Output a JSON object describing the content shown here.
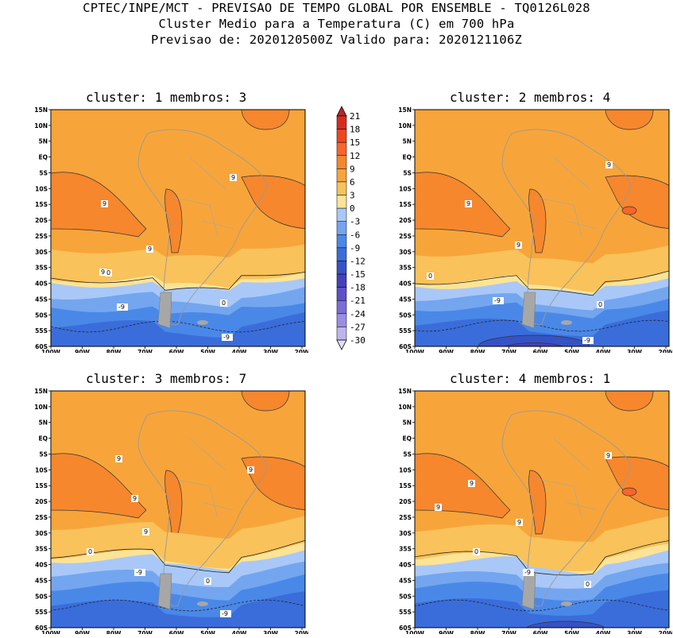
{
  "header": {
    "line1": "CPTEC/INPE/MCT - PREVISAO DE TEMPO GLOBAL POR ENSEMBLE - TQ0126L028",
    "line2": "Cluster Medio para a Temperatura (C) em 700 hPa",
    "line3": "Previsao de: 2020120500Z   Valido para: 2020121106Z"
  },
  "panels": [
    {
      "title": "cluster: 1   membros: 3",
      "labels": [
        "9",
        "9",
        "9",
        "9",
        "0",
        "0",
        "-9",
        "-9"
      ]
    },
    {
      "title": "cluster: 2   membros: 4",
      "labels": [
        "9",
        "9",
        "9",
        "0",
        "0",
        "-9",
        "-9"
      ]
    },
    {
      "title": "cluster: 3   membros: 7",
      "labels": [
        "9",
        "9",
        "9",
        "9",
        "0",
        "0",
        "-9",
        "-9"
      ]
    },
    {
      "title": "cluster: 4   membros: 1",
      "labels": [
        "9",
        "9",
        "9",
        "9",
        "0",
        "0",
        "-9"
      ]
    }
  ],
  "lat_labels": [
    "15N",
    "10N",
    "5N",
    "EQ",
    "5S",
    "10S",
    "15S",
    "20S",
    "25S",
    "30S",
    "35S",
    "40S",
    "45S",
    "50S",
    "55S",
    "60S"
  ],
  "lon_labels": [
    "100W",
    "90W",
    "80W",
    "70W",
    "60W",
    "50W",
    "40W",
    "30W",
    "20W"
  ],
  "colorbar": {
    "levels": [
      "21",
      "18",
      "15",
      "12",
      "9",
      "6",
      "3",
      "0",
      "-3",
      "-6",
      "-9",
      "-12",
      "-15",
      "-18",
      "-21",
      "-24",
      "-27",
      "-30"
    ],
    "colors": [
      "#b4282d",
      "#d82b20",
      "#f0461e",
      "#f8662a",
      "#f6872d",
      "#f7a53a",
      "#f9c25a",
      "#fde395",
      "#a9c8f8",
      "#73a6ef",
      "#4a88e8",
      "#3a6dda",
      "#3552c6",
      "#4540bd",
      "#5e50cb",
      "#7b6dd8",
      "#9a8ee3",
      "#bdb4ed",
      "#e1dcf6"
    ]
  }
}
